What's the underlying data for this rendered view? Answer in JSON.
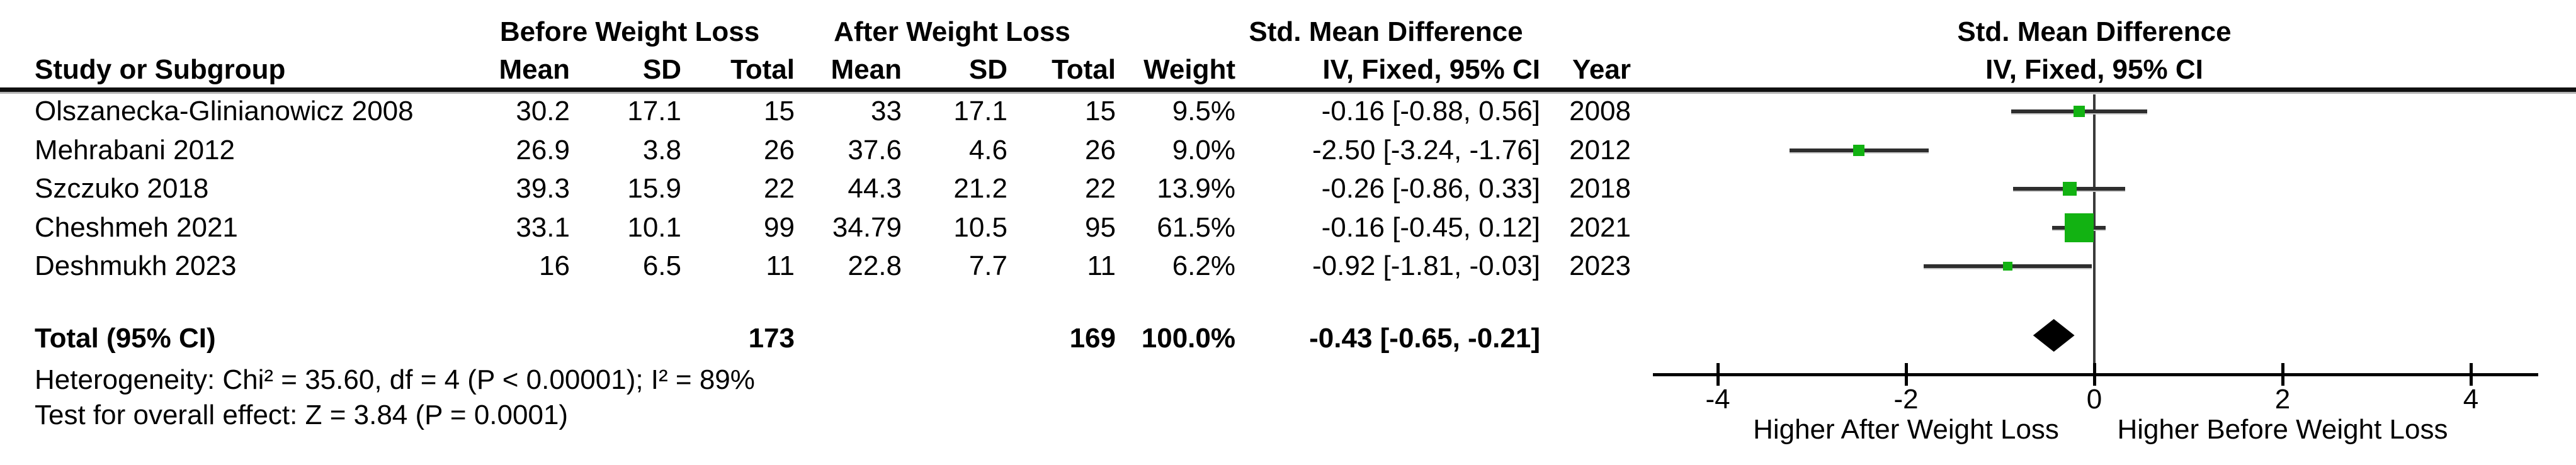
{
  "table": {
    "group_headers": {
      "before": "Before Weight Loss",
      "after": "After Weight Loss",
      "smd": "Std. Mean Difference"
    },
    "columns": {
      "study": "Study or Subgroup",
      "mean": "Mean",
      "sd": "SD",
      "total": "Total",
      "weight": "Weight",
      "iv_ci": "IV, Fixed, 95% CI",
      "year": "Year"
    },
    "rows": [
      {
        "study": "Olszanecka-Glinianowicz 2008",
        "before_mean": "30.2",
        "before_sd": "17.1",
        "before_total": "15",
        "after_mean": "33",
        "after_sd": "17.1",
        "after_total": "15",
        "weight": "9.5%",
        "smd_ci": "-0.16 [-0.88, 0.56]",
        "year": "2008"
      },
      {
        "study": "Mehrabani 2012",
        "before_mean": "26.9",
        "before_sd": "3.8",
        "before_total": "26",
        "after_mean": "37.6",
        "after_sd": "4.6",
        "after_total": "26",
        "weight": "9.0%",
        "smd_ci": "-2.50 [-3.24, -1.76]",
        "year": "2012"
      },
      {
        "study": "Szczuko 2018",
        "before_mean": "39.3",
        "before_sd": "15.9",
        "before_total": "22",
        "after_mean": "44.3",
        "after_sd": "21.2",
        "after_total": "22",
        "weight": "13.9%",
        "smd_ci": "-0.26 [-0.86, 0.33]",
        "year": "2018"
      },
      {
        "study": "Cheshmeh 2021",
        "before_mean": "33.1",
        "before_sd": "10.1",
        "before_total": "99",
        "after_mean": "34.79",
        "after_sd": "10.5",
        "after_total": "95",
        "weight": "61.5%",
        "smd_ci": "-0.16 [-0.45, 0.12]",
        "year": "2021"
      },
      {
        "study": "Deshmukh 2023",
        "before_mean": "16",
        "before_sd": "6.5",
        "before_total": "11",
        "after_mean": "22.8",
        "after_sd": "7.7",
        "after_total": "11",
        "weight": "6.2%",
        "smd_ci": "-0.92 [-1.81, -0.03]",
        "year": "2023"
      }
    ],
    "total": {
      "label": "Total (95% CI)",
      "before_total": "173",
      "after_total": "169",
      "weight": "100.0%",
      "smd_ci": "-0.43 [-0.65, -0.21]"
    },
    "heterogeneity_text": "Heterogeneity: Chi² = 35.60, df = 4 (P < 0.00001); I² = 89%",
    "overall_effect_text": "Test for overall effect: Z = 3.84 (P = 0.0001)"
  },
  "plot": {
    "header_title": "Std. Mean Difference",
    "header_sub": "IV, Fixed, 95% CI",
    "label_left": "Higher After Weight Loss",
    "label_right": "Higher Before Weight Loss",
    "marker_color": "#12b212",
    "diamond_color": "#000000"
  },
  "chart_data": {
    "type": "forest",
    "title": "Std. Mean Difference",
    "effect_model": "IV, Fixed, 95% CI",
    "xlim": [
      -4.69,
      4.72
    ],
    "ticks": [
      -4,
      -2,
      0,
      2,
      4
    ],
    "tick_labels": [
      "-4",
      "-2",
      "0",
      "2",
      "4"
    ],
    "axis_label_left": "Higher After Weight Loss",
    "axis_label_right": "Higher Before Weight Loss",
    "studies": [
      {
        "name": "Olszanecka-Glinianowicz 2008",
        "year": 2008,
        "estimate": -0.16,
        "ci_low": -0.88,
        "ci_high": 0.56,
        "weight_pct": 9.5
      },
      {
        "name": "Mehrabani 2012",
        "year": 2012,
        "estimate": -2.5,
        "ci_low": -3.24,
        "ci_high": -1.76,
        "weight_pct": 9.0
      },
      {
        "name": "Szczuko 2018",
        "year": 2018,
        "estimate": -0.26,
        "ci_low": -0.86,
        "ci_high": 0.33,
        "weight_pct": 13.9
      },
      {
        "name": "Cheshmeh 2021",
        "year": 2021,
        "estimate": -0.16,
        "ci_low": -0.45,
        "ci_high": 0.12,
        "weight_pct": 61.5
      },
      {
        "name": "Deshmukh 2023",
        "year": 2023,
        "estimate": -0.92,
        "ci_low": -1.81,
        "ci_high": -0.03,
        "weight_pct": 6.2
      }
    ],
    "total": {
      "label": "Total (95% CI)",
      "estimate": -0.43,
      "ci_low": -0.65,
      "ci_high": -0.21,
      "weight_pct": 100.0,
      "before_total": 173,
      "after_total": 169
    },
    "heterogeneity": {
      "chi2": 35.6,
      "df": 4,
      "p": "< 0.00001",
      "i2_pct": 89
    },
    "overall_effect": {
      "z": 3.84,
      "p": "= 0.0001"
    }
  }
}
